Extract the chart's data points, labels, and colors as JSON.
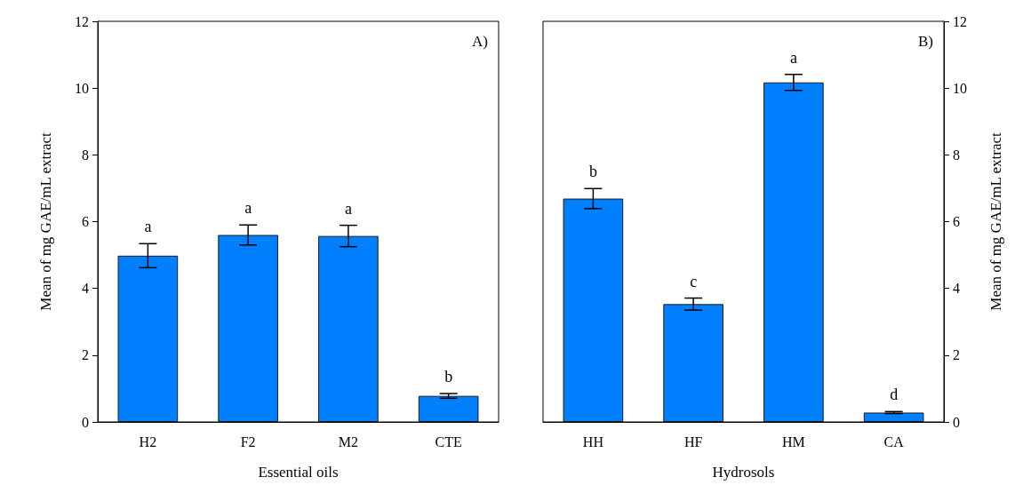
{
  "chart_data": [
    {
      "type": "bar",
      "xlabel": "Essential oils",
      "ylabel": "Mean of mg GAE/mL extract",
      "categories": [
        "H2",
        "F2",
        "M2",
        "CTE"
      ],
      "values": [
        4.98,
        5.6,
        5.57,
        0.78
      ],
      "errors": [
        0.36,
        0.3,
        0.32,
        0.07
      ],
      "color": "#0080ff",
      "ylim": [
        0,
        12
      ],
      "yticks": [
        0,
        2,
        4,
        6,
        8,
        10,
        12
      ],
      "grid": false,
      "annotations": [
        "A)",
        {
          "text": "a",
          "x": "H2",
          "y": 5.34
        },
        {
          "text": "a",
          "x": "F2",
          "y": 5.9
        },
        {
          "text": "a",
          "x": "M2",
          "y": 5.89
        },
        {
          "text": "b",
          "x": "CTE",
          "y": 0.85
        }
      ]
    },
    {
      "type": "bar",
      "xlabel": "Hydrosols",
      "ylabel": "Mean of mg GAE/mL extract",
      "categories": [
        "HH",
        "HF",
        "HM",
        "CA"
      ],
      "values": [
        6.69,
        3.53,
        10.17,
        0.28
      ],
      "errors": [
        0.3,
        0.18,
        0.24,
        0.03
      ],
      "color": "#0080ff",
      "ylim": [
        0,
        12
      ],
      "yticks": [
        0,
        2,
        4,
        6,
        8,
        10,
        12
      ],
      "grid": false,
      "annotations": [
        "B)",
        {
          "text": "b",
          "x": "HH",
          "y": 6.99
        },
        {
          "text": "c",
          "x": "HF",
          "y": 3.71
        },
        {
          "text": "a",
          "x": "HM",
          "y": 10.41
        },
        {
          "text": "d",
          "x": "CA",
          "y": 0.31
        }
      ]
    }
  ]
}
